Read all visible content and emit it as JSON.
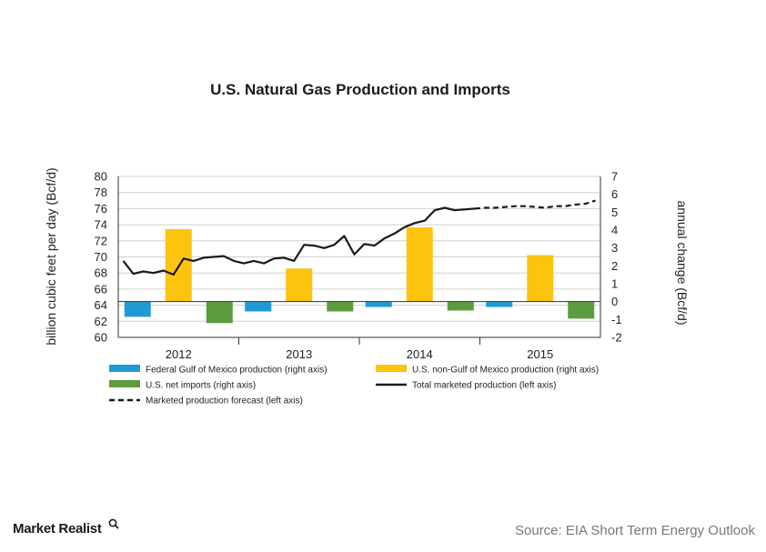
{
  "chart_data": {
    "type": "bar",
    "title": "U.S. Natural Gas Production and Imports",
    "ylabel_left": "billion cubic feet per day (Bcf/d)",
    "ylabel_right": "annual change (Bcf/d)",
    "ylim_left": [
      60,
      80
    ],
    "ylim_right": [
      -2,
      7
    ],
    "yticks_left": [
      "80",
      "78",
      "76",
      "74",
      "72",
      "70",
      "68",
      "66",
      "64",
      "62",
      "60"
    ],
    "yticks_right": [
      "7",
      "6",
      "5",
      "4",
      "3",
      "2",
      "1",
      "0",
      "-1",
      "-2"
    ],
    "categories": [
      "2012",
      "2013",
      "2014",
      "2015"
    ],
    "bar_series": [
      {
        "name": "Federal Gulf of Mexico production (right axis)",
        "color": "#1f9ad6",
        "values": [
          -0.85,
          -0.55,
          -0.3,
          -0.3
        ]
      },
      {
        "name": "U.S. non-Gulf of Mexico production (right axis)",
        "color": "#fcc40f",
        "values": [
          4.05,
          1.85,
          4.15,
          2.6
        ]
      },
      {
        "name": "U.S. net imports (right axis)",
        "color": "#5c9c3e",
        "values": [
          -1.2,
          -0.55,
          -0.5,
          -0.95
        ]
      }
    ],
    "line_series": [
      {
        "name": "Total marketed production (left axis)",
        "color": "#1a1a1a",
        "style": "solid",
        "x": [
          0,
          1,
          2,
          3,
          4,
          5,
          6,
          7,
          8,
          9,
          10,
          11,
          12,
          13,
          14,
          15,
          16,
          17,
          18,
          19,
          20,
          21,
          22,
          23,
          24,
          25,
          26,
          27,
          28,
          29,
          30,
          31,
          32,
          33,
          34,
          35
        ],
        "values": [
          69.5,
          67.9,
          68.2,
          68.0,
          68.3,
          67.8,
          69.8,
          69.5,
          69.9,
          70.0,
          70.1,
          69.5,
          69.2,
          69.5,
          69.2,
          69.8,
          69.9,
          69.5,
          71.5,
          71.4,
          71.1,
          71.5,
          72.6,
          70.3,
          71.6,
          71.4,
          72.3,
          72.9,
          73.7,
          74.2,
          74.5,
          75.8,
          76.1,
          75.8,
          75.9,
          76.0
        ]
      },
      {
        "name": "Marketed production forecast (left axis)",
        "color": "#1a1a1a",
        "style": "dashed",
        "x": [
          35,
          36,
          37,
          38,
          39,
          40,
          41,
          42,
          43,
          44,
          45,
          46,
          47
        ],
        "values": [
          76.0,
          76.1,
          76.1,
          76.2,
          76.3,
          76.3,
          76.2,
          76.1,
          76.3,
          76.3,
          76.5,
          76.6,
          77.0
        ]
      }
    ],
    "legend": {
      "placement": "bottom",
      "columns": 2
    }
  },
  "footer": {
    "brand": "Market Realist",
    "source": "Source: EIA Short Term Energy Outlook"
  }
}
